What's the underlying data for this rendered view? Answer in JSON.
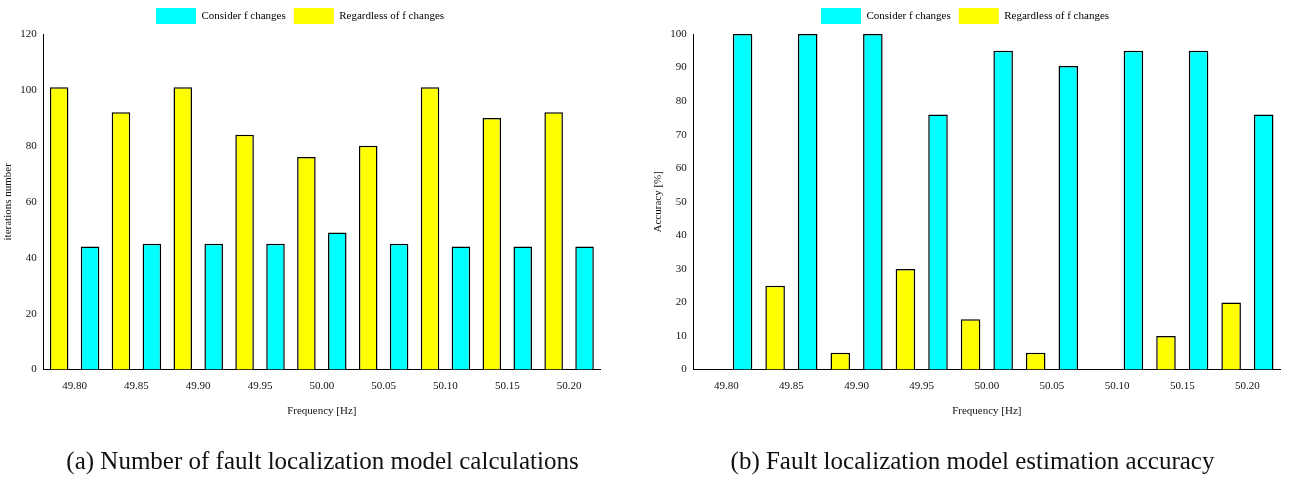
{
  "chart_data": [
    {
      "type": "bar",
      "title": "(a) Number of fault localization model calculations",
      "xlabel": "Frequency [Hz]",
      "ylabel": "iterations number",
      "categories": [
        "49.80",
        "49.85",
        "49.90",
        "49.95",
        "50.00",
        "50.05",
        "50.10",
        "50.15",
        "50.20"
      ],
      "series": [
        {
          "name": "Regardless of f changes",
          "color": "#ffff00",
          "values": [
            101,
            92,
            101,
            84,
            76,
            80,
            101,
            90,
            92
          ]
        },
        {
          "name": "Consider f changes",
          "color": "#00ffff",
          "values": [
            44,
            45,
            45,
            45,
            49,
            45,
            44,
            44,
            44
          ]
        }
      ],
      "ylim": [
        0,
        120
      ],
      "yticks": [
        0,
        20,
        40,
        60,
        80,
        100,
        120
      ],
      "grid": false,
      "legend": "top"
    },
    {
      "type": "bar",
      "title": "(b) Fault localization model estimation accuracy",
      "xlabel": "Frequency [Hz]",
      "ylabel": "Accuracy [%]",
      "categories": [
        "49.80",
        "49.85",
        "49.90",
        "49.95",
        "50.00",
        "50.05",
        "50.10",
        "50.15",
        "50.20"
      ],
      "series": [
        {
          "name": "Regardless of f changes",
          "color": "#ffff00",
          "values": [
            0,
            25,
            5,
            30,
            15,
            5,
            0,
            10,
            20
          ]
        },
        {
          "name": "Consider f changes",
          "color": "#00ffff",
          "values": [
            100,
            100,
            100,
            76,
            95,
            90.5,
            95,
            95,
            76
          ]
        }
      ],
      "ylim": [
        0,
        100
      ],
      "yticks": [
        0,
        10,
        20,
        30,
        40,
        50,
        60,
        70,
        80,
        90,
        100
      ],
      "grid": false,
      "legend": "top"
    }
  ]
}
